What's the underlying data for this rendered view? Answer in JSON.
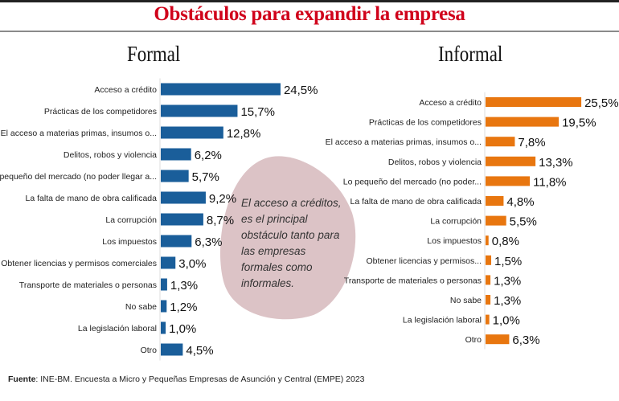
{
  "title": "Obstáculos para expandir la empresa",
  "annotation": [
    "El acceso a créditos,",
    "es el principal",
    "obstáculo tanto para",
    "las empresas",
    "formales como",
    "informales."
  ],
  "footer": {
    "label": "Fuente",
    "text": ": INE-BM. Encuesta a Micro y Pequeñas Empresas de Asunción y Central (EMPE) 2023"
  },
  "colors": {
    "title": "#d0021b",
    "formal": "#1a5e9a",
    "informal": "#e8760f",
    "annotation_bg": "#dcc3c6"
  },
  "chart_data": [
    {
      "type": "bar",
      "orientation": "horizontal",
      "title": "Formal",
      "categories": [
        "Acceso a crédito",
        "Prácticas de los competidores",
        "El acceso a materias primas, insumos o...",
        "Delitos, robos y violencia",
        "Lo pequeño del mercado (no poder llegar a...",
        "La falta de mano de obra calificada",
        "La corrupción",
        "Los impuestos",
        "Obtener licencias y permisos comerciales",
        "Transporte de materiales o personas",
        "No sabe",
        "La legislación laboral",
        "Otro"
      ],
      "values": [
        24.5,
        15.7,
        12.8,
        6.2,
        5.7,
        9.2,
        8.7,
        6.3,
        3.0,
        1.3,
        1.2,
        1.0,
        4.5
      ],
      "data_labels": [
        "24,5%",
        "15,7%",
        "12,8%",
        "6,2%",
        "5,7%",
        "9,2%",
        "8,7%",
        "6,3%",
        "3,0%",
        "1,3%",
        "1,2%",
        "1,0%",
        "4,5%"
      ],
      "color": "#1a5e9a",
      "grid": false
    },
    {
      "type": "bar",
      "orientation": "horizontal",
      "title": "Informal",
      "categories": [
        "Acceso a crédito",
        "Prácticas de los competidores",
        "El acceso a materias primas, insumos o...",
        "Delitos, robos y violencia",
        "Lo pequeño del mercado (no poder...",
        "La falta de mano de obra calificada",
        "La corrupción",
        "Los impuestos",
        "Obtener licencias y permisos...",
        "Transporte de materiales o personas",
        "No sabe",
        "La legislación laboral",
        "Otro"
      ],
      "values": [
        25.5,
        19.5,
        7.8,
        13.3,
        11.8,
        4.8,
        5.5,
        0.8,
        1.5,
        1.3,
        1.3,
        1.0,
        6.3
      ],
      "data_labels": [
        "25,5%",
        "19,5%",
        "7,8%",
        "13,3%",
        "11,8%",
        "4,8%",
        "5,5%",
        "0,8%",
        "1,5%",
        "1,3%",
        "1,3%",
        "1,0%",
        "6,3%"
      ],
      "color": "#e8760f",
      "grid": false
    }
  ]
}
